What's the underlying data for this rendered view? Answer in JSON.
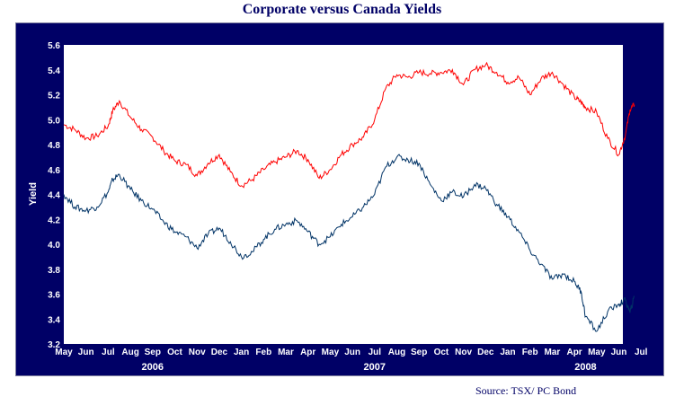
{
  "chart_data": {
    "type": "line",
    "title": "Corporate versus Canada Yields",
    "ylabel": "Yield",
    "xlabel": "",
    "ylim": [
      3.2,
      5.6
    ],
    "yticks": [
      "5.6",
      "5.4",
      "5.2",
      "5.0",
      "4.8",
      "4.6",
      "4.4",
      "4.2",
      "4.0",
      "3.8",
      "3.6",
      "3.4",
      "3.2"
    ],
    "xticks": [
      "May",
      "Jun",
      "Jul",
      "Aug",
      "Sep",
      "Oct",
      "Nov",
      "Dec",
      "Jan",
      "Feb",
      "Mar",
      "Apr",
      "May",
      "Jun",
      "Jul",
      "Aug",
      "Sep",
      "Oct",
      "Nov",
      "Dec",
      "Jan",
      "Feb",
      "Mar",
      "Apr",
      "May",
      "Jun",
      "Jul"
    ],
    "years": [
      {
        "label": "2006",
        "month_index": 4
      },
      {
        "label": "2007",
        "month_index": 14
      },
      {
        "label": "2008",
        "month_index": 23.5
      }
    ],
    "grid": false,
    "legend": "none",
    "series": [
      {
        "color": "#ff0000",
        "x": [
          0,
          0.5,
          1,
          1.5,
          2,
          2.2,
          2.5,
          3,
          3.5,
          4,
          4.5,
          5,
          5.5,
          6,
          6.5,
          7,
          7.5,
          8,
          8.5,
          9,
          9.5,
          10,
          10.5,
          11,
          11.5,
          12,
          12.5,
          13,
          13.5,
          14,
          14.5,
          15,
          15.5,
          16,
          16.5,
          17,
          17.5,
          18,
          18.5,
          19,
          19.5,
          20,
          20.5,
          21,
          21.5,
          22,
          22.5,
          23,
          23.3,
          23.5,
          24,
          24.5,
          25,
          25.3,
          25.5,
          25.7
        ],
        "values": [
          4.96,
          4.92,
          4.85,
          4.87,
          4.95,
          5.07,
          5.15,
          5.02,
          4.92,
          4.86,
          4.75,
          4.67,
          4.64,
          4.55,
          4.65,
          4.72,
          4.58,
          4.47,
          4.52,
          4.6,
          4.66,
          4.7,
          4.75,
          4.68,
          4.53,
          4.6,
          4.72,
          4.8,
          4.86,
          5.0,
          5.25,
          5.36,
          5.34,
          5.38,
          5.37,
          5.38,
          5.4,
          5.28,
          5.4,
          5.44,
          5.38,
          5.3,
          5.34,
          5.2,
          5.33,
          5.38,
          5.28,
          5.18,
          5.14,
          5.1,
          5.06,
          4.85,
          4.72,
          4.88,
          5.08,
          5.12
        ]
      },
      {
        "color": "#003366",
        "x": [
          0,
          0.5,
          1,
          1.5,
          2,
          2.2,
          2.5,
          3,
          3.5,
          4,
          4.5,
          5,
          5.5,
          6,
          6.5,
          7,
          7.5,
          8,
          8.5,
          9,
          9.5,
          10,
          10.5,
          11,
          11.5,
          12,
          12.5,
          13,
          13.5,
          14,
          14.5,
          15,
          15.5,
          16,
          16.5,
          17,
          17.5,
          18,
          18.5,
          19,
          19.5,
          20,
          20.5,
          21,
          21.5,
          22,
          22.5,
          23,
          23.3,
          23.5,
          24,
          24.5,
          25,
          25.3,
          25.5,
          25.7
        ],
        "values": [
          4.4,
          4.3,
          4.27,
          4.3,
          4.42,
          4.52,
          4.56,
          4.44,
          4.35,
          4.28,
          4.18,
          4.1,
          4.06,
          3.97,
          4.08,
          4.13,
          4.02,
          3.9,
          3.94,
          4.04,
          4.12,
          4.16,
          4.19,
          4.1,
          4.0,
          4.06,
          4.16,
          4.22,
          4.3,
          4.4,
          4.62,
          4.7,
          4.68,
          4.65,
          4.48,
          4.35,
          4.42,
          4.38,
          4.48,
          4.45,
          4.32,
          4.22,
          4.1,
          3.95,
          3.84,
          3.72,
          3.76,
          3.7,
          3.62,
          3.42,
          3.3,
          3.46,
          3.52,
          3.55,
          3.45,
          3.58
        ]
      }
    ]
  },
  "source": "Source: TSX/ PC Bond",
  "colors": {
    "frame": "#000066",
    "plot_bg": "#ffffff",
    "text": "#ffffff"
  }
}
